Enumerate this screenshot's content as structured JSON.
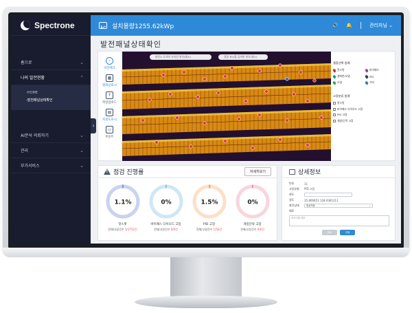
{
  "brand": {
    "name": "Spectrone"
  },
  "header": {
    "title": "설치용량1255.62kWp",
    "user": "관리자님"
  },
  "sidebar": {
    "items": [
      {
        "label": "홈으로"
      },
      {
        "label": "나의 발전현황"
      },
      {
        "label": "AI분석 의뢰하기"
      },
      {
        "label": "관리"
      },
      {
        "label": "부가서비스"
      }
    ],
    "submenu": [
      "-HOME",
      "-발전패널상태확인"
    ]
  },
  "page": {
    "title": "발전패널상태확인"
  },
  "map": {
    "search_placeholder_1": "발전소 도색이 유지된 위치(예시)",
    "search_placeholder_2": "결함 표시를 검색한 위치(예시)",
    "tools": [
      {
        "label": "이전체크"
      },
      {
        "label": "열화상표시"
      },
      {
        "label": "파일업로드"
      },
      {
        "label": "지적도표시"
      },
      {
        "label": "프린트"
      }
    ],
    "legend": {
      "title1": "결함선택 범례",
      "pins": [
        {
          "label": "핫스팟",
          "color": "#c0392b"
        },
        {
          "label": "바이패스",
          "color": "#8e44ad"
        },
        {
          "label": "셀파손/오염",
          "color": "#16a085"
        },
        {
          "label": "PID",
          "color": "#2c3e50"
        },
        {
          "label": "오염",
          "color": "#27ae60"
        },
        {
          "label": "기타",
          "color": "#2980b9"
        }
      ],
      "title2": "고장분류 범례",
      "checks": [
        "핫스팟",
        "바이패스 다이오드 고장",
        "PID 고장",
        "개방/단락 고장"
      ]
    }
  },
  "progress": {
    "title": "점검 진행률",
    "detail_button": "자세히보기",
    "gauges": [
      {
        "value_text": "1.1%",
        "value": 1.1,
        "label": "핫스팟",
        "sub": "전체/고장건수",
        "count": "1/1752건",
        "color": "#c9d2f0",
        "accent": "#6b7bd6"
      },
      {
        "value_text": "0%",
        "value": 0,
        "label": "바이패스 다이오드 고장",
        "sub": "전체/고장건수",
        "count": "0/0건",
        "color": "#cfe6f6",
        "accent": "#5aa8de"
      },
      {
        "value_text": "1.5%",
        "value": 1.5,
        "label": "PID 고장",
        "sub": "전체/고장건수",
        "count": "1/56건",
        "color": "#fde0c6",
        "accent": "#f39c4a"
      },
      {
        "value_text": "0%",
        "value": 0,
        "label": "개방단락 고장",
        "sub": "전체/고장건수",
        "count": "0/0건",
        "color": "#f8d6dc",
        "accent": "#e56a80"
      }
    ]
  },
  "detail": {
    "title": "상세정보",
    "fields": [
      {
        "key": "번호",
        "value": "11"
      },
      {
        "key": "고장유형",
        "value": "PID 고장"
      },
      {
        "key": "위도",
        "input": ""
      },
      {
        "key": "경도",
        "value": "35.806651 128.0381211"
      },
      {
        "key": "발전상태",
        "select": "정상작동"
      },
      {
        "key": "메모"
      }
    ],
    "memo_placeholder": "조치사항 메모",
    "cancel": "취소",
    "save": "저장"
  }
}
